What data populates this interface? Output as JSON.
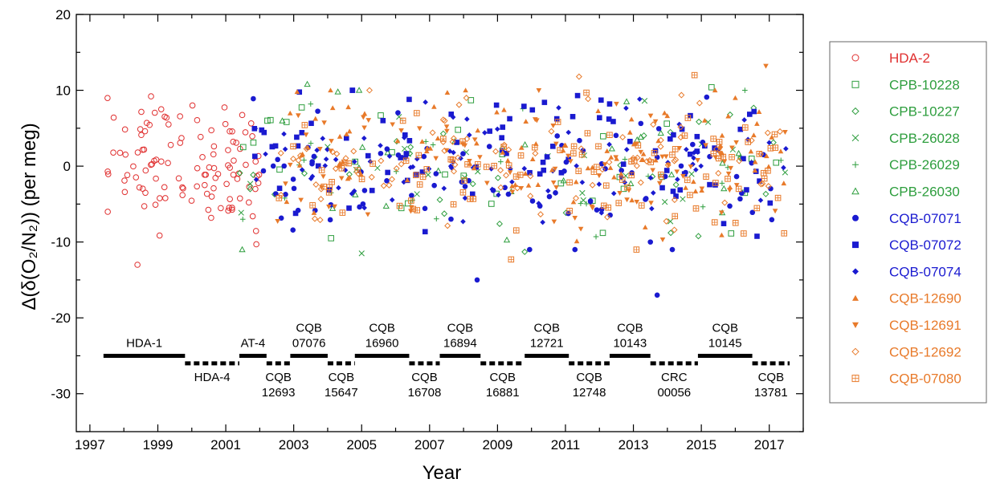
{
  "chart_data": {
    "type": "scatter",
    "xlabel": "Year",
    "ylabel": "Δ(δ(O₂/N₂)) (per meg)",
    "xlim": [
      1996.6,
      2018.0
    ],
    "ylim": [
      -35,
      20
    ],
    "x_ticks": [
      1997,
      1999,
      2001,
      2003,
      2005,
      2007,
      2009,
      2011,
      2013,
      2015,
      2017
    ],
    "x_tick_labels": [
      "1997",
      "1999",
      "2001",
      "2003",
      "2005",
      "2007",
      "2009",
      "2011",
      "2013",
      "2015",
      "2017"
    ],
    "y_ticks": [
      20,
      10,
      0,
      -10,
      -20,
      -30
    ],
    "y_tick_labels": [
      "20",
      "10",
      "0",
      "-10",
      "-20",
      "-30"
    ],
    "legend_position": "right, outside",
    "series": [
      {
        "name": "HDA-2",
        "color": "#e03030",
        "marker": "circle-open",
        "x_range": [
          1997.5,
          2002.0
        ],
        "mean": 0.5,
        "sd": 4.0,
        "count": 110,
        "points": [
          [
            1998.4,
            -13.0
          ],
          [
            1998.8,
            9.2
          ],
          [
            2001.9,
            -10.3
          ],
          [
            1997.7,
            6.4
          ],
          [
            1999.1,
            7.5
          ]
        ]
      },
      {
        "name": "CPB-10228",
        "color": "#2e9e3e",
        "marker": "square-open",
        "x_range": [
          2001.3,
          2017.5
        ],
        "mean": 0.0,
        "sd": 4.0,
        "count": 30,
        "points": [
          [
            2004.1,
            -9.5
          ],
          [
            2015.3,
            10.4
          ],
          [
            2012.1,
            -8.8
          ]
        ]
      },
      {
        "name": "CPB-10227",
        "color": "#2e9e3e",
        "marker": "diamond-open",
        "x_range": [
          2001.3,
          2017.5
        ],
        "mean": 0.0,
        "sd": 4.0,
        "count": 30,
        "points": [
          [
            2009.8,
            -11.3
          ],
          [
            2014.1,
            -8.8
          ]
        ]
      },
      {
        "name": "CPB-26028",
        "color": "#2e9e3e",
        "marker": "x",
        "x_range": [
          2001.3,
          2017.5
        ],
        "mean": 0.0,
        "sd": 4.0,
        "count": 25,
        "points": [
          [
            2005.0,
            -11.5
          ],
          [
            2015.2,
            5.8
          ],
          [
            2006.1,
            6.5
          ]
        ]
      },
      {
        "name": "CPB-26029",
        "color": "#2e9e3e",
        "marker": "plus",
        "x_range": [
          2001.3,
          2017.5
        ],
        "mean": 0.0,
        "sd": 4.0,
        "count": 25,
        "points": [
          [
            2001.5,
            -7.0
          ],
          [
            2003.5,
            8.2
          ],
          [
            2011.9,
            -9.3
          ]
        ]
      },
      {
        "name": "CPB-26030",
        "color": "#2e9e3e",
        "marker": "triangle-open",
        "x_range": [
          2001.3,
          2017.5
        ],
        "mean": 0.0,
        "sd": 4.0,
        "count": 25,
        "points": [
          [
            2003.4,
            10.8
          ],
          [
            2004.3,
            9.8
          ],
          [
            2012.8,
            8.5
          ]
        ]
      },
      {
        "name": "CQB-07071",
        "color": "#1a1ad0",
        "marker": "circle-filled",
        "x_range": [
          2001.8,
          2017.5
        ],
        "mean": -2.0,
        "sd": 4.0,
        "count": 90,
        "points": [
          [
            2008.4,
            -15.0
          ],
          [
            2013.7,
            -17.0
          ],
          [
            2013.5,
            -10.0
          ]
        ]
      },
      {
        "name": "CQB-07072",
        "color": "#1a1ad0",
        "marker": "square-filled",
        "x_range": [
          2001.8,
          2017.5
        ],
        "mean": 1.0,
        "sd": 4.0,
        "count": 90,
        "points": [
          [
            2006.4,
            8.8
          ],
          [
            2012.3,
            8.2
          ]
        ]
      },
      {
        "name": "CQB-07074",
        "color": "#1a1ad0",
        "marker": "diamond-filled",
        "x_range": [
          2001.8,
          2017.5
        ],
        "mean": 0.0,
        "sd": 4.0,
        "count": 90,
        "points": [
          [
            2010.8,
            7.7
          ],
          [
            2008.1,
            6.2
          ]
        ]
      },
      {
        "name": "CQB-12690",
        "color": "#e87a2a",
        "marker": "triangle-filled",
        "x_range": [
          2002.5,
          2017.5
        ],
        "mean": 1.5,
        "sd": 4.0,
        "count": 100,
        "points": [
          [
            2003.1,
            9.8
          ],
          [
            2016.0,
            9.0
          ]
        ]
      },
      {
        "name": "CQB-12691",
        "color": "#e87a2a",
        "marker": "triangle-down-filled",
        "x_range": [
          2002.5,
          2017.5
        ],
        "mean": 0.0,
        "sd": 4.0,
        "count": 90,
        "points": [
          [
            2016.9,
            13.2
          ],
          [
            2012.5,
            8.2
          ]
        ]
      },
      {
        "name": "CQB-12692",
        "color": "#e87a2a",
        "marker": "diamond-open",
        "x_range": [
          2002.5,
          2017.5
        ],
        "mean": 0.0,
        "sd": 4.0,
        "count": 90,
        "points": [
          [
            2011.4,
            11.8
          ]
        ]
      },
      {
        "name": "CQB-07080",
        "color": "#e87a2a",
        "marker": "square-crossed",
        "x_range": [
          2002.5,
          2017.5
        ],
        "mean": -0.5,
        "sd": 4.0,
        "count": 110,
        "points": [
          [
            2014.8,
            12.0
          ],
          [
            2009.4,
            -12.3
          ]
        ]
      }
    ],
    "reference_tank_bars": {
      "upper_y": -25,
      "lower_y": -26,
      "upper": [
        {
          "x0": 1997.4,
          "x1": 1999.8,
          "line1": "HDA-1",
          "line2": ""
        },
        {
          "x0": 2001.4,
          "x1": 2002.2,
          "line1": "AT-4",
          "line2": ""
        },
        {
          "x0": 2002.9,
          "x1": 2004.0,
          "line1": "CQB",
          "line2": "07076"
        },
        {
          "x0": 2004.8,
          "x1": 2006.4,
          "line1": "CQB",
          "line2": "16960"
        },
        {
          "x0": 2007.3,
          "x1": 2008.5,
          "line1": "CQB",
          "line2": "16894"
        },
        {
          "x0": 2009.8,
          "x1": 2011.1,
          "line1": "CQB",
          "line2": "12721"
        },
        {
          "x0": 2012.3,
          "x1": 2013.5,
          "line1": "CQB",
          "line2": "10143"
        },
        {
          "x0": 2014.9,
          "x1": 2016.5,
          "line1": "CQB",
          "line2": "10145"
        }
      ],
      "lower": [
        {
          "x0": 1999.8,
          "x1": 2001.4,
          "line1": "HDA-4",
          "line2": ""
        },
        {
          "x0": 2002.2,
          "x1": 2002.9,
          "line1": "CQB",
          "line2": "12693"
        },
        {
          "x0": 2004.0,
          "x1": 2004.8,
          "line1": "CQB",
          "line2": "15647"
        },
        {
          "x0": 2006.4,
          "x1": 2007.3,
          "line1": "CQB",
          "line2": "16708"
        },
        {
          "x0": 2008.5,
          "x1": 2009.8,
          "line1": "CQB",
          "line2": "16881"
        },
        {
          "x0": 2011.1,
          "x1": 2012.3,
          "line1": "CQB",
          "line2": "12748"
        },
        {
          "x0": 2013.5,
          "x1": 2014.9,
          "line1": "CRC",
          "line2": "00056"
        },
        {
          "x0": 2016.5,
          "x1": 2017.6,
          "line1": "CQB",
          "line2": "13781"
        }
      ]
    }
  }
}
